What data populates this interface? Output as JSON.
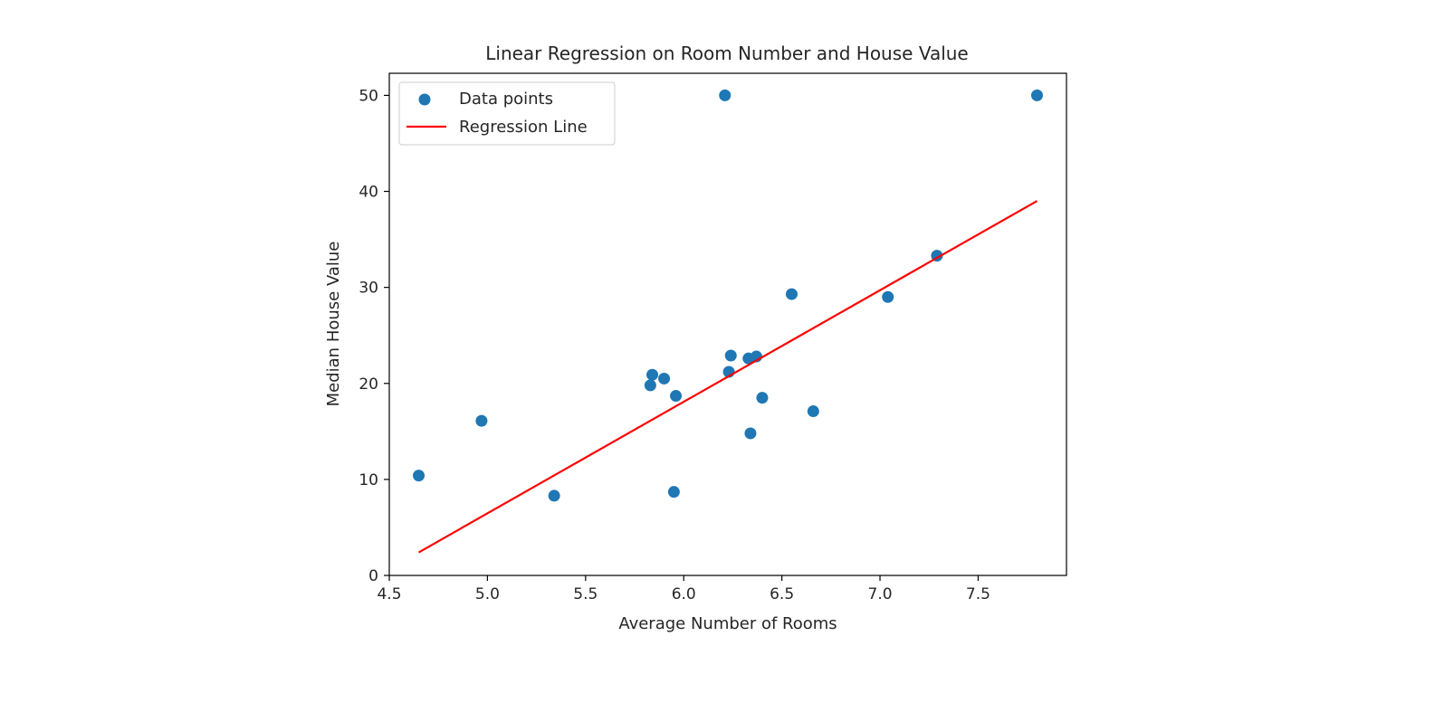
{
  "chart_data": {
    "type": "scatter",
    "title": "Linear Regression on Room Number and House Value",
    "xlabel": "Average Number of Rooms",
    "ylabel": "Median House Value",
    "xlim": [
      4.5,
      7.95
    ],
    "ylim": [
      0,
      52.3
    ],
    "xticks": [
      4.5,
      5.0,
      5.5,
      6.0,
      6.5,
      7.0,
      7.5
    ],
    "xtick_labels": [
      "4.5",
      "5.0",
      "5.5",
      "6.0",
      "6.5",
      "7.0",
      "7.5"
    ],
    "yticks": [
      0,
      10,
      20,
      30,
      40,
      50
    ],
    "ytick_labels": [
      "0",
      "10",
      "20",
      "30",
      "40",
      "50"
    ],
    "grid": false,
    "legend_position": "top-left",
    "series": [
      {
        "name": "Data points",
        "kind": "scatter",
        "color": "#1f77b4",
        "x": [
          4.65,
          4.97,
          5.34,
          5.83,
          5.84,
          5.9,
          5.95,
          5.96,
          6.21,
          6.23,
          6.24,
          6.33,
          6.34,
          6.37,
          6.4,
          6.55,
          6.66,
          7.04,
          7.29,
          7.8
        ],
        "y": [
          10.4,
          16.1,
          8.3,
          19.8,
          20.9,
          20.5,
          8.7,
          18.7,
          50.0,
          21.2,
          22.9,
          22.6,
          14.8,
          22.8,
          18.5,
          29.3,
          17.1,
          29.0,
          33.3,
          50.0
        ]
      },
      {
        "name": "Regression Line",
        "kind": "line",
        "color": "#ff0000",
        "x": [
          4.65,
          7.8
        ],
        "y": [
          2.4,
          39.0
        ]
      }
    ]
  }
}
